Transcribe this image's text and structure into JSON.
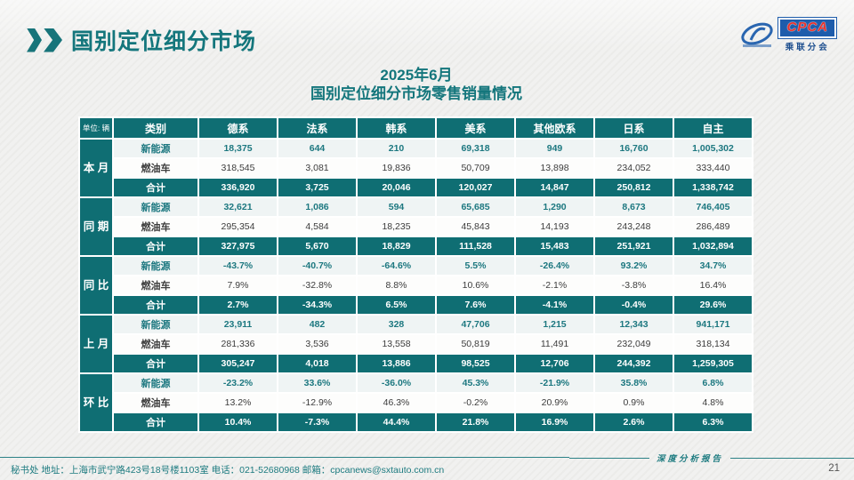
{
  "slide": {
    "title": "国别定位细分市场",
    "subtitle_line1": "2025年6月",
    "subtitle_line2": "国别定位细分市场零售销量情况",
    "footer_text": "秘书处  地址：上海市武宁路423号18号楼1103室  电话：021-52680968   邮箱：cpcanews@sxtauto.com.cn",
    "footer_right": "深度分析报告",
    "page_number": "21"
  },
  "logo": {
    "acronym": "CPCA",
    "name_cn": "乘联分会"
  },
  "decor": {
    "watermark": "CPCA"
  },
  "colors": {
    "teal_dark": "#0f6e73",
    "teal_title": "#14767c",
    "nev_text": "#1d7880",
    "nev_row_bg": "#eff4f4",
    "logo_blue": "#1e5cab",
    "logo_red": "#e8312a"
  },
  "table": {
    "unit_label": "单位: 辆",
    "columns": [
      "类别",
      "德系",
      "法系",
      "韩系",
      "美系",
      "其他欧系",
      "日系",
      "自主"
    ],
    "groups": [
      {
        "label": "本月",
        "rows": [
          {
            "type": "nev",
            "label": "新能源",
            "values": [
              "18,375",
              "644",
              "210",
              "69,318",
              "949",
              "16,760",
              "1,005,302"
            ]
          },
          {
            "type": "fuel",
            "label": "燃油车",
            "values": [
              "318,545",
              "3,081",
              "19,836",
              "50,709",
              "13,898",
              "234,052",
              "333,440"
            ]
          },
          {
            "type": "total",
            "label": "合计",
            "values": [
              "336,920",
              "3,725",
              "20,046",
              "120,027",
              "14,847",
              "250,812",
              "1,338,742"
            ]
          }
        ]
      },
      {
        "label": "同期",
        "rows": [
          {
            "type": "nev",
            "label": "新能源",
            "values": [
              "32,621",
              "1,086",
              "594",
              "65,685",
              "1,290",
              "8,673",
              "746,405"
            ]
          },
          {
            "type": "fuel",
            "label": "燃油车",
            "values": [
              "295,354",
              "4,584",
              "18,235",
              "45,843",
              "14,193",
              "243,248",
              "286,489"
            ]
          },
          {
            "type": "total",
            "label": "合计",
            "values": [
              "327,975",
              "5,670",
              "18,829",
              "111,528",
              "15,483",
              "251,921",
              "1,032,894"
            ]
          }
        ]
      },
      {
        "label": "同比",
        "rows": [
          {
            "type": "nev",
            "label": "新能源",
            "values": [
              "-43.7%",
              "-40.7%",
              "-64.6%",
              "5.5%",
              "-26.4%",
              "93.2%",
              "34.7%"
            ]
          },
          {
            "type": "fuel",
            "label": "燃油车",
            "values": [
              "7.9%",
              "-32.8%",
              "8.8%",
              "10.6%",
              "-2.1%",
              "-3.8%",
              "16.4%"
            ]
          },
          {
            "type": "total",
            "label": "合计",
            "values": [
              "2.7%",
              "-34.3%",
              "6.5%",
              "7.6%",
              "-4.1%",
              "-0.4%",
              "29.6%"
            ]
          }
        ]
      },
      {
        "label": "上月",
        "rows": [
          {
            "type": "nev",
            "label": "新能源",
            "values": [
              "23,911",
              "482",
              "328",
              "47,706",
              "1,215",
              "12,343",
              "941,171"
            ]
          },
          {
            "type": "fuel",
            "label": "燃油车",
            "values": [
              "281,336",
              "3,536",
              "13,558",
              "50,819",
              "11,491",
              "232,049",
              "318,134"
            ]
          },
          {
            "type": "total",
            "label": "合计",
            "values": [
              "305,247",
              "4,018",
              "13,886",
              "98,525",
              "12,706",
              "244,392",
              "1,259,305"
            ]
          }
        ]
      },
      {
        "label": "环比",
        "rows": [
          {
            "type": "nev",
            "label": "新能源",
            "values": [
              "-23.2%",
              "33.6%",
              "-36.0%",
              "45.3%",
              "-21.9%",
              "35.8%",
              "6.8%"
            ]
          },
          {
            "type": "fuel",
            "label": "燃油车",
            "values": [
              "13.2%",
              "-12.9%",
              "46.3%",
              "-0.2%",
              "20.9%",
              "0.9%",
              "4.8%"
            ]
          },
          {
            "type": "total",
            "label": "合计",
            "values": [
              "10.4%",
              "-7.3%",
              "44.4%",
              "21.8%",
              "16.9%",
              "2.6%",
              "6.3%"
            ]
          }
        ]
      }
    ]
  }
}
